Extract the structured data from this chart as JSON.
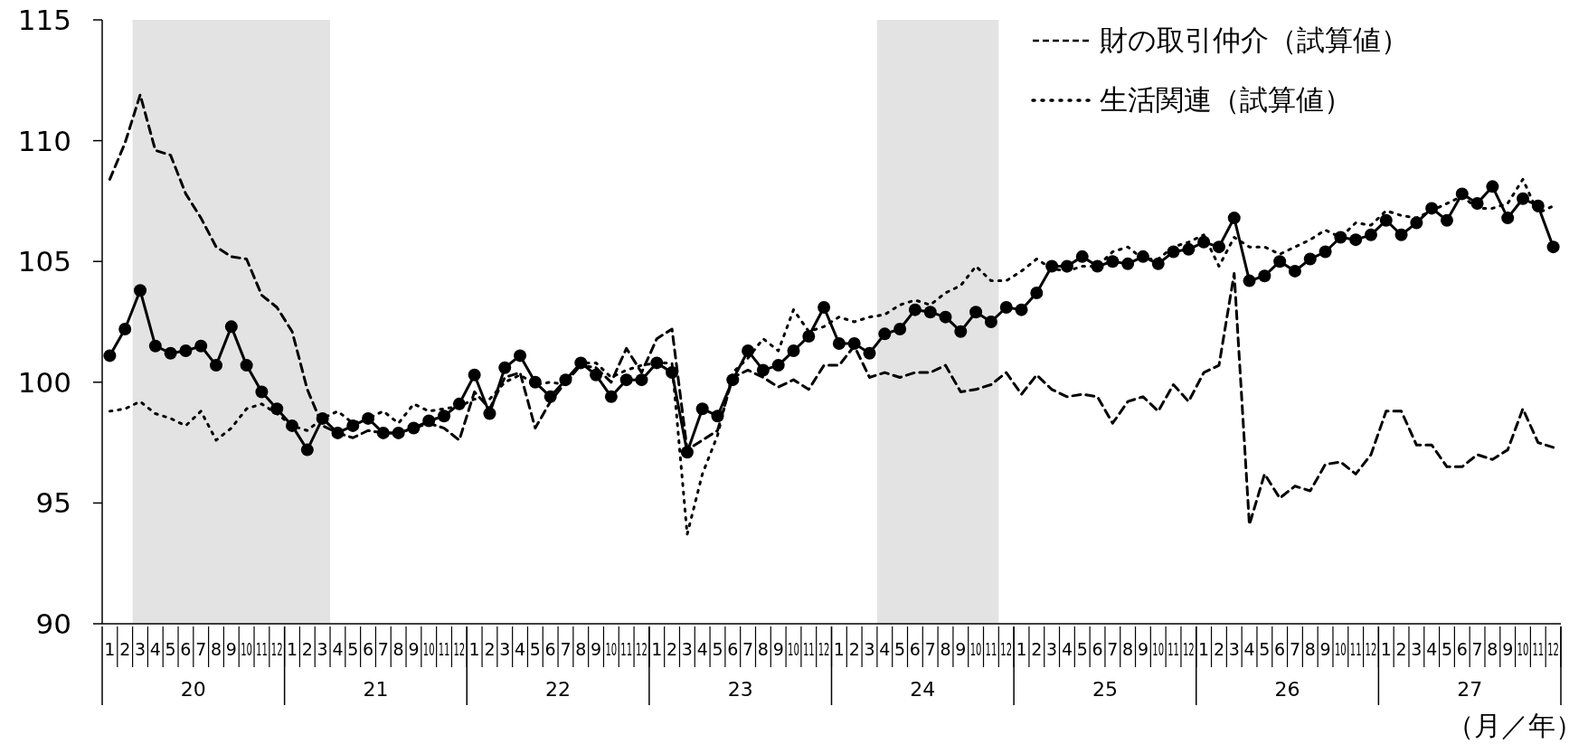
{
  "chart_data": {
    "type": "line",
    "categories": [
      "1",
      "2",
      "3",
      "4",
      "5",
      "6",
      "7",
      "8",
      "9",
      "10",
      "11",
      "12",
      "1",
      "2",
      "3",
      "4",
      "5",
      "6",
      "7",
      "8",
      "9",
      "10",
      "11",
      "12",
      "1",
      "2",
      "3",
      "4",
      "5",
      "6",
      "7",
      "8",
      "9",
      "10",
      "11",
      "12",
      "1",
      "2",
      "3",
      "4",
      "5",
      "6",
      "7",
      "8",
      "9",
      "10",
      "11",
      "12",
      "1",
      "2",
      "3",
      "4",
      "5",
      "6",
      "7",
      "8",
      "9",
      "10",
      "11",
      "12",
      "1",
      "2",
      "3",
      "4",
      "5",
      "6",
      "7",
      "8",
      "9",
      "10",
      "11",
      "12",
      "1",
      "2",
      "3",
      "4",
      "5",
      "6",
      "7",
      "8",
      "9",
      "10",
      "11",
      "12",
      "1",
      "2",
      "3",
      "4",
      "5",
      "6",
      "7",
      "8",
      "9",
      "10",
      "11",
      "12"
    ],
    "ylim": [
      90,
      115
    ],
    "yticks": [
      90,
      95,
      100,
      105,
      110,
      115
    ],
    "series": [
      {
        "color": "#000000",
        "line_style": "solid",
        "marker": "circle",
        "values": [
          101.1,
          102.2,
          103.8,
          101.5,
          101.2,
          101.3,
          101.5,
          100.7,
          102.3,
          100.7,
          99.6,
          98.9,
          98.2,
          97.2,
          98.5,
          97.9,
          98.2,
          98.5,
          97.9,
          97.9,
          98.1,
          98.4,
          98.6,
          99.1,
          100.3,
          98.7,
          100.6,
          101.1,
          100.0,
          99.4,
          100.1,
          100.8,
          100.3,
          99.4,
          100.1,
          100.1,
          100.8,
          100.4,
          97.1,
          98.9,
          98.6,
          100.1,
          101.3,
          100.5,
          100.7,
          101.3,
          101.9,
          103.1,
          101.6,
          101.6,
          101.2,
          102.0,
          102.2,
          103.0,
          102.9,
          102.7,
          102.1,
          102.9,
          102.5,
          103.1,
          103.0,
          103.7,
          104.8,
          104.8,
          105.2,
          104.8,
          105.0,
          104.9,
          105.2,
          104.9,
          105.4,
          105.5,
          105.8,
          105.6,
          106.8,
          104.2,
          104.4,
          105.0,
          104.6,
          105.1,
          105.4,
          106.0,
          105.9,
          106.1,
          106.7,
          106.1,
          106.6,
          107.2,
          106.7,
          107.8,
          107.4,
          108.1,
          106.8,
          107.6,
          107.3,
          105.6
        ]
      },
      {
        "name": "財の取引仲介（試算値）",
        "color": "#000000",
        "line_style": "dashed",
        "marker": "none",
        "values": [
          108.4,
          109.9,
          111.9,
          109.6,
          109.4,
          107.8,
          106.8,
          105.6,
          105.2,
          105.1,
          103.6,
          103.1,
          102.1,
          99.7,
          98.2,
          97.9,
          97.7,
          98.0,
          97.9,
          97.9,
          98.1,
          98.3,
          98.1,
          97.6,
          99.6,
          98.9,
          100.2,
          100.4,
          98.1,
          99.2,
          100.0,
          100.7,
          100.6,
          100.0,
          101.4,
          100.4,
          101.8,
          102.2,
          97.2,
          97.6,
          98.0,
          100.2,
          100.5,
          100.2,
          99.8,
          100.1,
          99.7,
          100.7,
          100.7,
          101.5,
          100.2,
          100.4,
          100.2,
          100.4,
          100.4,
          100.7,
          99.6,
          99.7,
          99.9,
          100.4,
          99.5,
          100.3,
          99.7,
          99.4,
          99.5,
          99.4,
          98.3,
          99.2,
          99.4,
          98.8,
          99.9,
          99.2,
          100.4,
          100.7,
          104.5,
          94.1,
          96.2,
          95.2,
          95.7,
          95.5,
          96.6,
          96.7,
          96.2,
          97.0,
          98.8,
          98.8,
          97.4,
          97.4,
          96.5,
          96.5,
          97.0,
          96.8,
          97.2,
          98.9,
          97.5,
          97.3
        ]
      },
      {
        "name": "生活関連（試算値）",
        "color": "#000000",
        "line_style": "dotted",
        "marker": "none",
        "values": [
          98.8,
          98.9,
          99.2,
          98.7,
          98.5,
          98.2,
          98.8,
          97.6,
          98.1,
          98.9,
          99.1,
          98.7,
          98.2,
          98.0,
          98.5,
          98.8,
          98.3,
          98.5,
          98.8,
          98.3,
          99.1,
          98.8,
          98.9,
          99.0,
          99.3,
          99.3,
          100.0,
          100.3,
          99.9,
          100.0,
          99.9,
          100.8,
          100.8,
          100.2,
          100.5,
          100.7,
          100.8,
          100.8,
          93.7,
          96.2,
          97.8,
          100.4,
          101.0,
          101.8,
          101.3,
          103.0,
          102.1,
          102.3,
          102.7,
          102.5,
          102.7,
          102.8,
          103.2,
          103.4,
          103.2,
          103.7,
          104.0,
          104.8,
          104.2,
          104.2,
          104.6,
          105.1,
          104.7,
          104.6,
          104.8,
          104.8,
          105.4,
          105.6,
          105.1,
          105.1,
          105.6,
          105.8,
          106.1,
          104.8,
          106.0,
          105.6,
          105.6,
          105.3,
          105.6,
          105.9,
          106.3,
          106.0,
          106.6,
          106.5,
          107.1,
          106.9,
          106.8,
          107.1,
          107.4,
          107.7,
          107.2,
          107.2,
          107.4,
          108.4,
          107.0,
          107.3
        ]
      }
    ],
    "annotations": [
      "20",
      "21",
      "22",
      "23",
      "24",
      "25",
      "26",
      "27",
      "（月／年）"
    ],
    "legend": "top right"
  }
}
